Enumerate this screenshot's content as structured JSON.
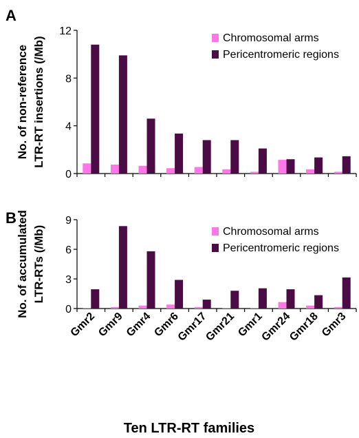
{
  "chart_data": [
    {
      "panel_label": "A",
      "type": "bar",
      "ylabel_line1": "No. of non-reference",
      "ylabel_line2": "LTR-RT insertions  (/Mb)",
      "ylim": [
        0,
        12
      ],
      "yticks": [
        "0",
        "4",
        "8",
        "12"
      ],
      "legend_position": "top-right",
      "categories": [
        "Gmr2",
        "Gmr9",
        "Gmr4",
        "Gmr6",
        "Gmr17",
        "Gmr21",
        "Gmr1",
        "Gmr24",
        "Gmr18",
        "Gmr3"
      ],
      "series": [
        {
          "name": "Chromosomal arms",
          "color": "#ff77e6",
          "values": [
            0.85,
            0.75,
            0.65,
            0.45,
            0.55,
            0.35,
            0.15,
            1.15,
            0.35,
            0.15
          ]
        },
        {
          "name": "Pericentromeric regions",
          "color": "#4b0b45",
          "values": [
            10.8,
            9.9,
            4.6,
            3.35,
            2.8,
            2.8,
            2.1,
            1.2,
            1.35,
            1.45
          ]
        }
      ]
    },
    {
      "panel_label": "B",
      "type": "bar",
      "ylabel_line1": "No. of accumulated",
      "ylabel_line2": "LTR-RTs (/Mb)",
      "ylim": [
        0,
        9
      ],
      "yticks": [
        "0",
        "3",
        "6",
        "9"
      ],
      "legend_position": "top-right",
      "categories": [
        "Gmr2",
        "Gmr9",
        "Gmr4",
        "Gmr6",
        "Gmr17",
        "Gmr21",
        "Gmr1",
        "Gmr24",
        "Gmr18",
        "Gmr3"
      ],
      "series": [
        {
          "name": "Chromosomal arms",
          "color": "#ff77e6",
          "values": [
            0.05,
            0.15,
            0.3,
            0.4,
            0.15,
            0.05,
            0.05,
            0.65,
            0.3,
            0.15
          ]
        },
        {
          "name": "Pericentromeric regions",
          "color": "#4b0b45",
          "values": [
            1.95,
            8.35,
            5.8,
            2.9,
            0.9,
            1.8,
            2.05,
            1.95,
            1.35,
            3.15
          ]
        }
      ]
    }
  ],
  "xlabel": "Ten LTR-RT families"
}
